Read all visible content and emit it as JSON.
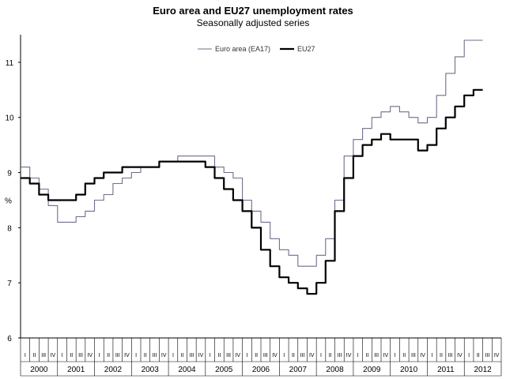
{
  "chart_data": {
    "type": "line",
    "title": "Euro area and EU27 unemployment rates",
    "subtitle": "Seasonally adjusted series",
    "ylabel": "%",
    "ylim": [
      6,
      11.5
    ],
    "yticks": [
      "6",
      "7",
      "8",
      "9",
      "10",
      "11"
    ],
    "quarter_labels": [
      "I",
      "II",
      "III",
      "IV"
    ],
    "years": [
      "2000",
      "2001",
      "2002",
      "2003",
      "2004",
      "2005",
      "2006",
      "2007",
      "2008",
      "2009",
      "2010",
      "2011",
      "2012"
    ],
    "grid": false,
    "legend_position": "top",
    "x_unit": "quarter",
    "series": [
      {
        "name": "Euro area (EA17)",
        "color": "#6d6f8a",
        "values": [
          9.1,
          8.9,
          8.7,
          8.4,
          8.1,
          8.1,
          8.2,
          8.3,
          8.5,
          8.6,
          8.8,
          8.9,
          9.0,
          9.1,
          9.1,
          9.2,
          9.2,
          9.3,
          9.3,
          9.3,
          9.3,
          9.1,
          9.0,
          8.9,
          8.5,
          8.3,
          8.1,
          7.8,
          7.6,
          7.5,
          7.3,
          7.3,
          7.5,
          7.8,
          8.5,
          9.3,
          9.6,
          9.8,
          10.0,
          10.1,
          10.2,
          10.1,
          10.0,
          9.9,
          10.0,
          10.4,
          10.8,
          11.1,
          11.4,
          11.4
        ]
      },
      {
        "name": "EU27",
        "color": "#000000",
        "values": [
          8.9,
          8.8,
          8.6,
          8.5,
          8.5,
          8.5,
          8.6,
          8.8,
          8.9,
          9.0,
          9.0,
          9.1,
          9.1,
          9.1,
          9.1,
          9.2,
          9.2,
          9.2,
          9.2,
          9.2,
          9.1,
          8.9,
          8.7,
          8.5,
          8.3,
          8.0,
          7.6,
          7.3,
          7.1,
          7.0,
          6.9,
          6.8,
          7.0,
          7.4,
          8.3,
          8.9,
          9.3,
          9.5,
          9.6,
          9.7,
          9.6,
          9.6,
          9.6,
          9.4,
          9.5,
          9.8,
          10.0,
          10.2,
          10.4,
          10.5
        ]
      }
    ]
  }
}
